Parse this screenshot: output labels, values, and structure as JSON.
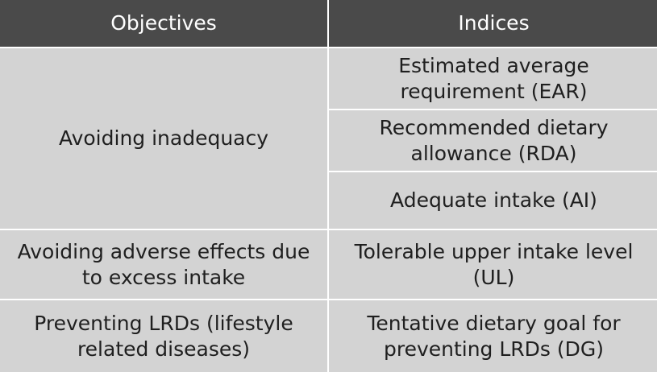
{
  "table": {
    "headers": [
      "Objectives",
      "Indices"
    ],
    "objectives": [
      "Avoiding inadequacy",
      "Avoiding adverse effects due to excess intake",
      "Preventing LRDs (lifestyle related diseases)"
    ],
    "indices": [
      "Estimated average requirement (EAR)",
      "Recommended dietary allowance (RDA)",
      "Adequate intake (AI)",
      "Tolerable upper intake level (UL)",
      "Tentative dietary goal for preventing LRDs (DG)"
    ]
  },
  "colors": {
    "header_bg": "#4a4a4a",
    "header_text": "#ffffff",
    "cell_bg": "#d3d3d3",
    "cell_text": "#1f1f1f",
    "divider": "#ffffff"
  }
}
